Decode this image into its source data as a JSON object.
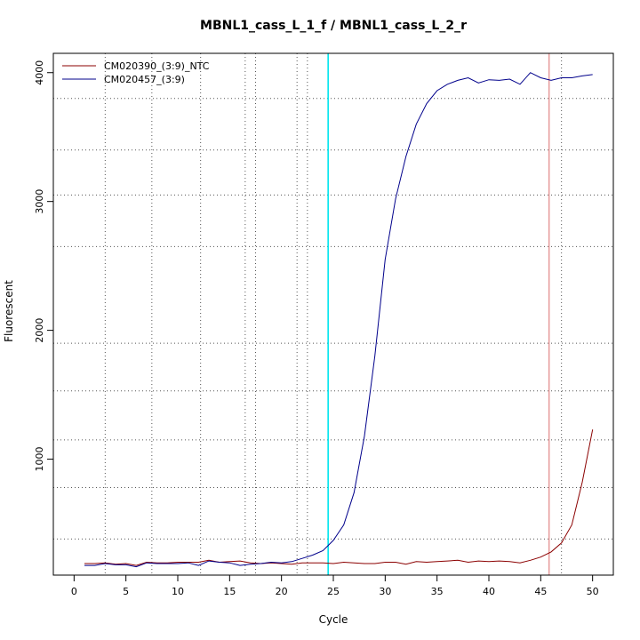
{
  "chart_data": {
    "type": "line",
    "title": "MBNL1_cass_L_1_f / MBNL1_cass_L_2_r",
    "xlabel": "Cycle",
    "ylabel": "Fluorescent",
    "xlim": [
      -2,
      52
    ],
    "ylim": [
      100,
      4150
    ],
    "x_ticks": [
      0,
      5,
      10,
      15,
      20,
      25,
      30,
      35,
      40,
      45,
      50
    ],
    "y_ticks": [
      1000,
      2000,
      3000,
      4000
    ],
    "x_grid": [
      3,
      7.5,
      12.2,
      16.5,
      17.5,
      21.5,
      22.5,
      47
    ],
    "y_grid": [
      380,
      780,
      1150,
      1530,
      1900,
      2650,
      3050,
      3400,
      3800
    ],
    "vlines": [
      {
        "x": 24.5,
        "color": "#00e5ee"
      },
      {
        "x": 45.8,
        "color": "#e8a0a0"
      }
    ],
    "legend_position": "top-left",
    "series": [
      {
        "name": "CM020390_(3:9)_NTC",
        "color": "#8b0000",
        "x": [
          1,
          2,
          3,
          4,
          5,
          6,
          7,
          8,
          9,
          10,
          11,
          12,
          13,
          14,
          15,
          16,
          17,
          18,
          19,
          20,
          21,
          22,
          23,
          24,
          25,
          26,
          27,
          28,
          29,
          30,
          31,
          32,
          33,
          34,
          35,
          36,
          37,
          38,
          39,
          40,
          41,
          42,
          43,
          44,
          45,
          46,
          47,
          48,
          49,
          50
        ],
        "y": [
          190,
          190,
          195,
          185,
          190,
          175,
          200,
          195,
          195,
          200,
          200,
          200,
          215,
          200,
          205,
          210,
          195,
          190,
          195,
          190,
          185,
          195,
          195,
          195,
          190,
          200,
          195,
          190,
          190,
          200,
          200,
          185,
          205,
          200,
          205,
          210,
          215,
          200,
          210,
          205,
          210,
          205,
          195,
          215,
          240,
          280,
          350,
          490,
          820,
          1230
        ]
      },
      {
        "name": "CM020457_(3:9)",
        "color": "#00008b",
        "x": [
          1,
          2,
          3,
          4,
          5,
          6,
          7,
          8,
          9,
          10,
          11,
          12,
          13,
          14,
          15,
          16,
          17,
          18,
          19,
          20,
          21,
          22,
          23,
          24,
          25,
          26,
          27,
          28,
          29,
          30,
          31,
          32,
          33,
          34,
          35,
          36,
          37,
          38,
          39,
          40,
          41,
          42,
          43,
          44,
          45,
          46,
          47,
          48,
          49,
          50
        ],
        "y": [
          175,
          175,
          190,
          180,
          180,
          165,
          195,
          190,
          190,
          190,
          195,
          175,
          210,
          200,
          195,
          175,
          185,
          190,
          200,
          195,
          205,
          230,
          255,
          290,
          370,
          490,
          740,
          1180,
          1800,
          2550,
          3020,
          3350,
          3600,
          3760,
          3860,
          3910,
          3940,
          3960,
          3920,
          3945,
          3940,
          3950,
          3910,
          4000,
          3960,
          3940,
          3960,
          3960,
          3975,
          3985
        ]
      }
    ]
  }
}
